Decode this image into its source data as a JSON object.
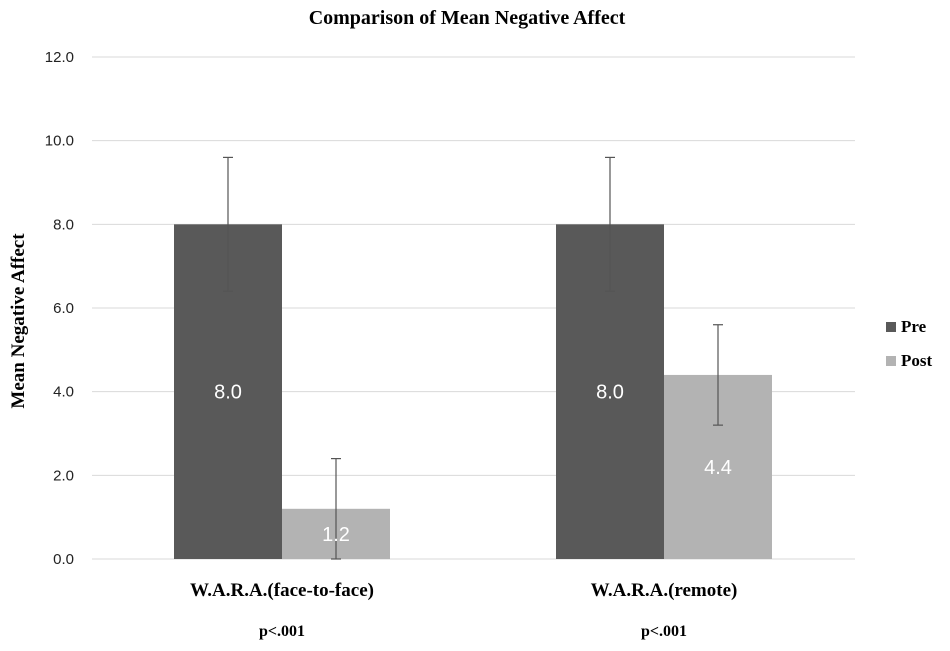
{
  "chart_data": {
    "type": "bar",
    "title": "Comparison of Mean Negative Affect",
    "xlabel": "",
    "ylabel": "Mean Negative Affect",
    "ylim": [
      0,
      12
    ],
    "yticks": [
      "0.0",
      "2.0",
      "4.0",
      "6.0",
      "8.0",
      "10.0",
      "12.0"
    ],
    "grid": true,
    "legend_position": "right",
    "categories": [
      "W.A.R.A.(face-to-face)",
      "W.A.R.A.(remote)"
    ],
    "annotations": [
      "p<.001",
      "p<.001"
    ],
    "series": [
      {
        "name": "Pre",
        "color": "#595959",
        "values": [
          8.0,
          8.0
        ],
        "labels": [
          "8.0",
          "8.0"
        ],
        "error_low": [
          6.4,
          6.4
        ],
        "error_high": [
          9.6,
          9.6
        ]
      },
      {
        "name": "Post",
        "color": "#b3b3b3",
        "values": [
          1.2,
          4.4
        ],
        "labels": [
          "1.2",
          "4.4"
        ],
        "error_low": [
          0.0,
          3.2
        ],
        "error_high": [
          2.4,
          5.6
        ]
      }
    ]
  }
}
